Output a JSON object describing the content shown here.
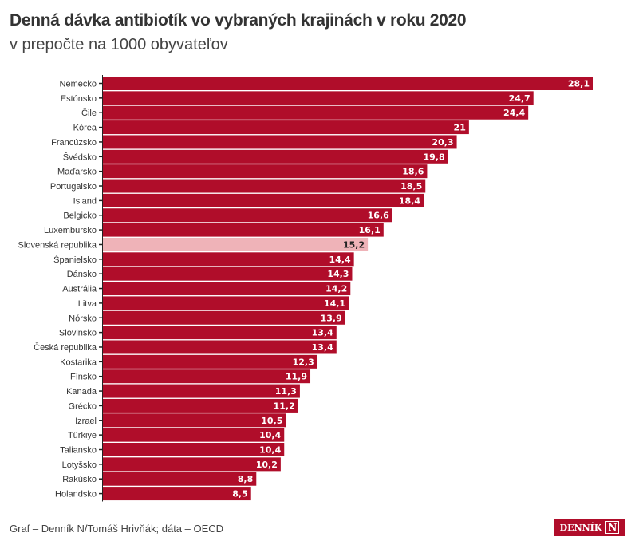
{
  "chart_data": {
    "type": "bar",
    "orientation": "horizontal",
    "title": "Denná dávka antibiotík vo vybraných krajinách v roku 2020",
    "subtitle": "v prepočte na 1000 obyvateľov",
    "categories": [
      "Nemecko",
      "Estónsko",
      "Čile",
      "Kórea",
      "Francúzsko",
      "Švédsko",
      "Maďarsko",
      "Portugalsko",
      "Island",
      "Belgicko",
      "Luxembursko",
      "Slovenská republika",
      "Španielsko",
      "Dánsko",
      "Austrália",
      "Litva",
      "Nórsko",
      "Slovinsko",
      "Česká republika",
      "Kostarika",
      "Fínsko",
      "Kanada",
      "Grécko",
      "Izrael",
      "Türkiye",
      "Taliansko",
      "Lotyšsko",
      "Rakúsko",
      "Holandsko"
    ],
    "values": [
      28.1,
      24.7,
      24.4,
      21,
      20.3,
      19.8,
      18.6,
      18.5,
      18.4,
      16.6,
      16.1,
      15.2,
      14.4,
      14.3,
      14.2,
      14.1,
      13.9,
      13.4,
      13.4,
      12.3,
      11.9,
      11.3,
      11.2,
      10.5,
      10.4,
      10.4,
      10.2,
      8.8,
      8.5
    ],
    "data_labels": [
      "28,1",
      "24,7",
      "24,4",
      "21",
      "20,3",
      "19,8",
      "18,6",
      "18,5",
      "18,4",
      "16,6",
      "16,1",
      "15,2",
      "14,4",
      "14,3",
      "14,2",
      "14,1",
      "13,9",
      "13,4",
      "13,4",
      "12,3",
      "11,9",
      "11,3",
      "11,2",
      "10,5",
      "10,4",
      "10,4",
      "10,2",
      "8,8",
      "8,5"
    ],
    "highlight": "Slovenská republika",
    "xlim": [
      0,
      28.1
    ],
    "grid": false,
    "colors": {
      "bar": "#b00d2a",
      "highlight": "#efb3b8",
      "label_on_bar": "#ffffff",
      "label_on_highlight": "#222222"
    }
  },
  "footer": {
    "source": "Graf – Denník N/Tomáš Hrivňák; dáta – OECD",
    "logo": "DENNÍK N"
  }
}
